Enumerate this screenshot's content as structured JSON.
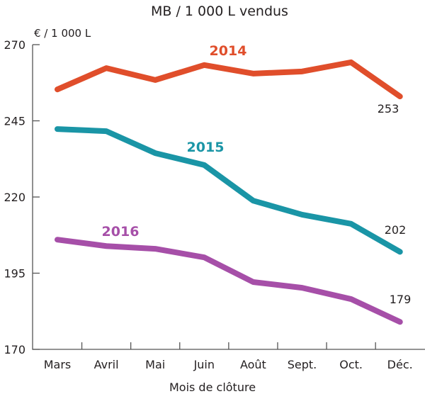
{
  "chart_data": {
    "type": "line",
    "title": "MB / 1 000 L vendus",
    "ylabel": "€ / 1 000 L",
    "xlabel": "Mois de clôture",
    "categories": [
      "Mars",
      "Avril",
      "Mai",
      "Juin",
      "Août",
      "Sept.",
      "Oct.",
      "Déc."
    ],
    "ylim": [
      170,
      270
    ],
    "yticks": [
      270,
      245,
      220,
      195,
      170
    ],
    "grid": false,
    "series": [
      {
        "name": "2014",
        "color": "#e04e2b",
        "values": [
          255.3,
          262.3,
          258.4,
          263.3,
          260.5,
          261.2,
          264.2,
          253
        ],
        "end_label": "253"
      },
      {
        "name": "2015",
        "color": "#1a95a6",
        "values": [
          242.3,
          241.6,
          234.4,
          230.5,
          218.8,
          214.2,
          211.2,
          202
        ],
        "end_label": "202"
      },
      {
        "name": "2016",
        "color": "#a64fa8",
        "values": [
          206.0,
          203.9,
          203.0,
          200.2,
          192.1,
          190.2,
          186.5,
          179
        ],
        "end_label": "179"
      }
    ]
  }
}
